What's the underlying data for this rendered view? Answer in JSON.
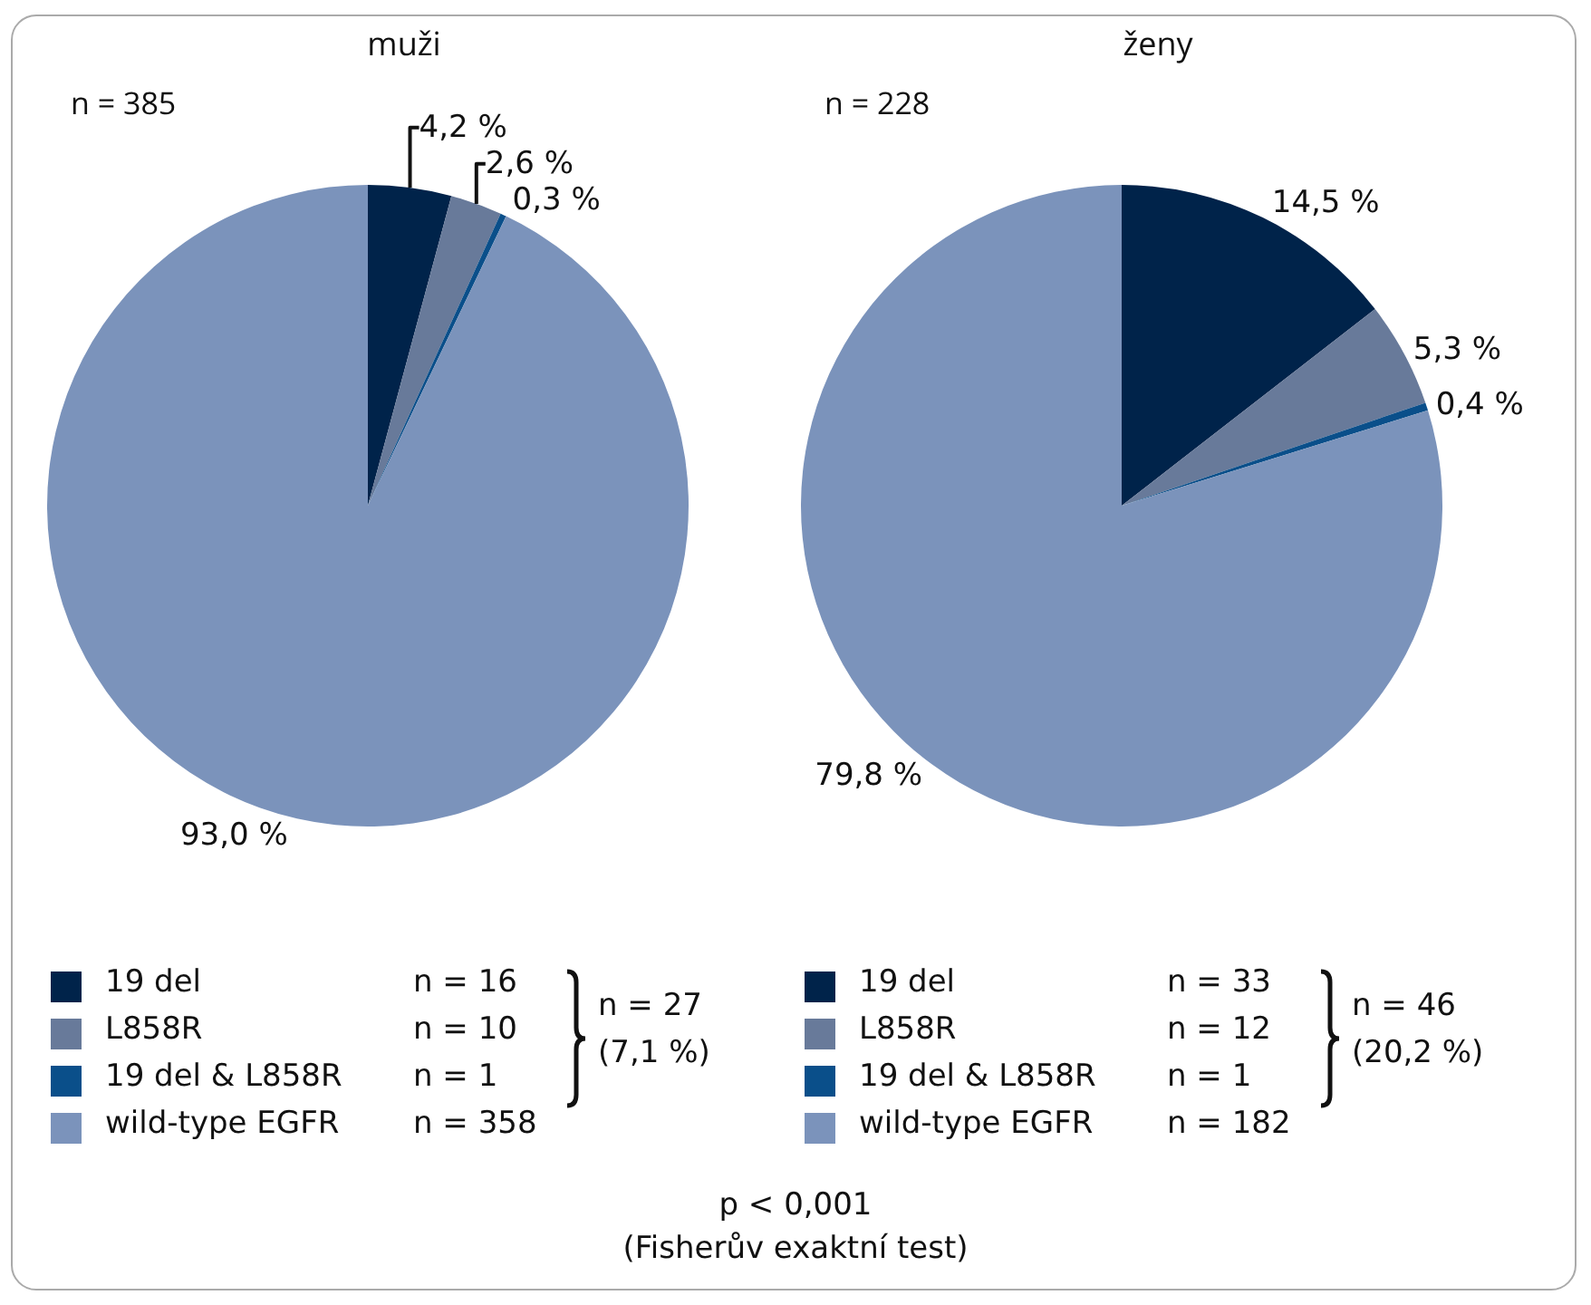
{
  "chart_data": [
    {
      "type": "pie",
      "title": "muži",
      "categories": [
        "19 del",
        "L858R",
        "19 del & L858R",
        "wild-type EGFR"
      ],
      "values": [
        4.2,
        2.6,
        0.3,
        93.0
      ],
      "colors": [
        "#00234a",
        "#687a9a",
        "#0a4f8a",
        "#7b93bb"
      ],
      "value_labels": [
        "4,2 %",
        "2,6 %",
        "0,3 %",
        "93,0 %"
      ],
      "annotations": [
        "n = 385",
        "n = 16",
        "n = 10",
        "n = 1",
        "n = 358",
        "n = 27",
        "(7,1 %)"
      ],
      "legend": "bottom"
    },
    {
      "type": "pie",
      "title": "ženy",
      "categories": [
        "19 del",
        "L858R",
        "19 del & L858R",
        "wild-type EGFR"
      ],
      "values": [
        14.5,
        5.3,
        0.4,
        79.8
      ],
      "colors": [
        "#00234a",
        "#687a9a",
        "#0a4f8a",
        "#7b93bb"
      ],
      "value_labels": [
        "14,5 %",
        "5,3 %",
        "0,4 %",
        "79,8 %"
      ],
      "annotations": [
        "n = 228",
        "n = 33",
        "n = 12",
        "n = 1",
        "n = 182",
        "n = 46",
        "(20,2 %)",
        "p < 0,001",
        "(Fisherův exaktní test)"
      ],
      "legend": "bottom"
    }
  ]
}
